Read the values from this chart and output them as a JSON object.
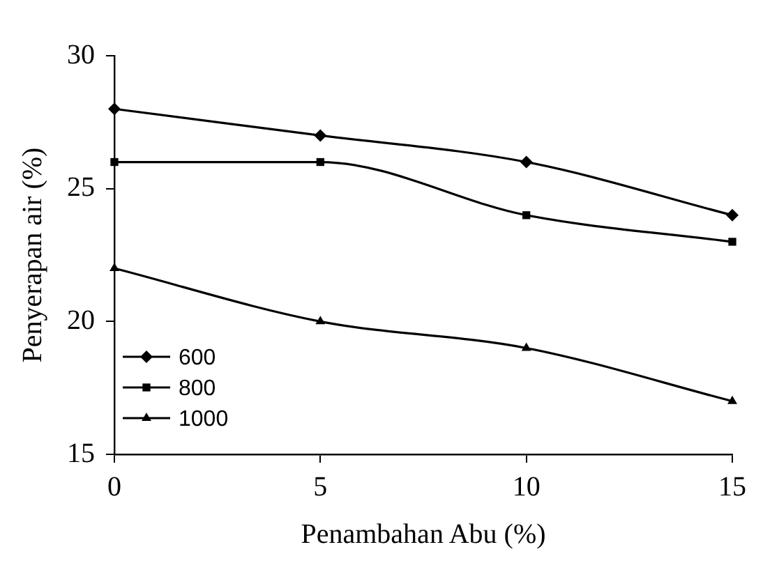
{
  "chart_data": {
    "type": "line",
    "xlabel": "Penambahan Abu (%)",
    "ylabel": "Penyerapan air (%)",
    "x": [
      0,
      5,
      10,
      15
    ],
    "series": [
      {
        "name": "600",
        "color": "#000000",
        "marker": "diamond",
        "values": [
          28,
          27,
          26,
          24
        ]
      },
      {
        "name": "800",
        "color": "#000000",
        "marker": "square",
        "values": [
          26,
          26,
          24,
          23
        ]
      },
      {
        "name": "1000",
        "color": "#000000",
        "marker": "triangle",
        "values": [
          22,
          20,
          19,
          17
        ]
      }
    ],
    "xlim": [
      0,
      15
    ],
    "xticks": [
      0,
      5,
      10,
      15
    ],
    "ylim": [
      15,
      30
    ],
    "yticks": [
      15,
      20,
      25,
      30
    ],
    "grid": false,
    "legend": "bottom left",
    "line_style": "solid"
  }
}
